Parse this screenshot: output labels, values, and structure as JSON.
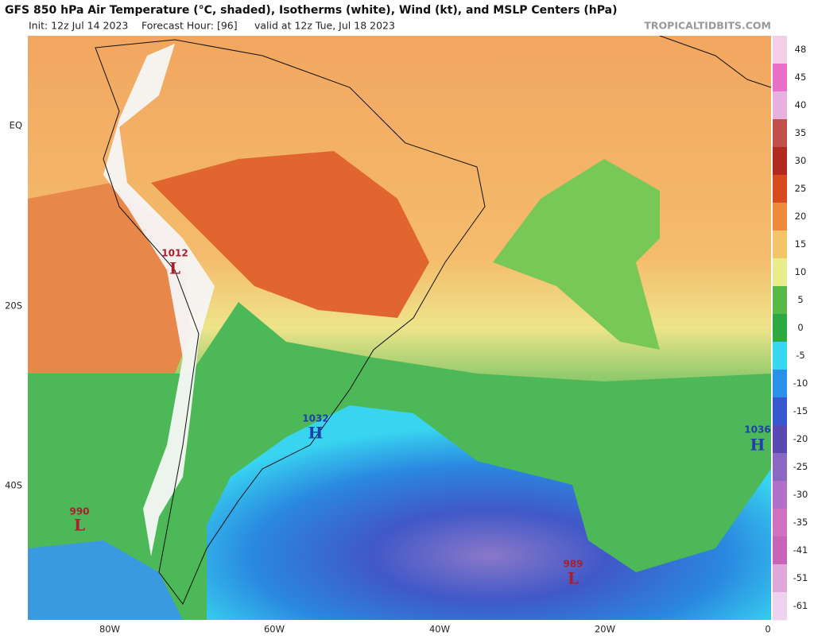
{
  "header": {
    "title": "GFS 850 hPa Air Temperature (°C, shaded), Isotherms (white), Wind (kt), and MSLP Centers (hPa)",
    "init": "Init: 12z Jul 14 2023",
    "forecast_hour": "Forecast Hour: [96]",
    "valid": "valid at 12z Tue, Jul 18 2023",
    "site": "TROPICALTIDBITS.COM"
  },
  "latitude_labels": [
    "EQ",
    "20S",
    "40S"
  ],
  "longitude_labels": [
    "80W",
    "60W",
    "40W",
    "20W",
    "0"
  ],
  "pressure_centers": [
    {
      "value": "1012",
      "symbol": "L"
    },
    {
      "value": "990",
      "symbol": "L"
    },
    {
      "value": "1032",
      "symbol": "H"
    },
    {
      "value": "1036",
      "symbol": "H"
    },
    {
      "value": "989",
      "symbol": "L"
    }
  ],
  "colorbar": {
    "ticks": [
      48,
      45,
      40,
      35,
      30,
      25,
      20,
      15,
      10,
      5,
      0,
      -5,
      -10,
      -15,
      -20,
      -25,
      -30,
      -35,
      -41,
      -51,
      -61
    ],
    "colors": [
      "#f2cfe6",
      "#e870c8",
      "#e8b0dc",
      "#c0504a",
      "#b02a20",
      "#d84a20",
      "#ee8a3c",
      "#f4c46a",
      "#e8ec8a",
      "#58b848",
      "#2ea840",
      "#38d8f0",
      "#2a90e8",
      "#3858d0",
      "#5848b0",
      "#8868c0",
      "#b070c8",
      "#d070c0",
      "#c864b8",
      "#e0a8d8",
      "#eed2ee"
    ]
  }
}
